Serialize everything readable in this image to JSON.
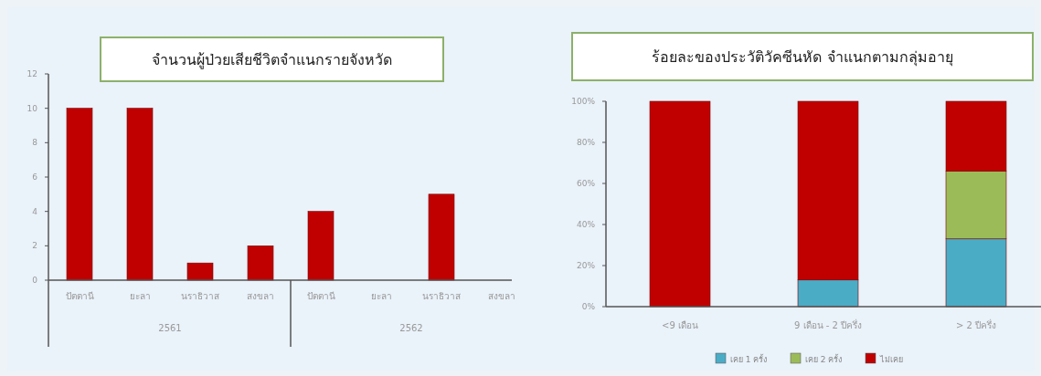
{
  "chart_data": [
    {
      "type": "bar",
      "title": "จำนวนผู้ป่วยเสียชีวิตจำแนกรายจังหวัด",
      "categories": [
        "ปัตตานี",
        "ยะลา",
        "นราธิวาส",
        "สงขลา",
        "ปัตตานี",
        "ยะลา",
        "นราธิวาส",
        "สงขลา"
      ],
      "series": [
        {
          "color": "#c00000",
          "values": [
            10,
            10,
            1,
            2,
            4,
            0,
            5,
            0
          ]
        }
      ],
      "annotations": [
        "2561",
        "2562"
      ],
      "ylim": [
        0,
        12
      ],
      "yticks": [
        0,
        2,
        4,
        6,
        8,
        10,
        12
      ],
      "grid": false,
      "legend": false
    },
    {
      "type": "bar",
      "title": "ร้อยละของประวัติวัคซีนหัด จำแนกตามกลุ่มอายุ",
      "stacked": true,
      "categories": [
        "<9 เดือน",
        "9 เดือน - 2 ปีครึ่ง",
        "> 2 ปีครึ่ง"
      ],
      "series": [
        {
          "name": "เคย 1 ครั้ง",
          "color": "#4bacc6",
          "values": [
            0,
            13,
            33
          ]
        },
        {
          "name": "เคย 2 ครั้ง",
          "color": "#9bbb59",
          "values": [
            0,
            0,
            33
          ]
        },
        {
          "name": "ไม่เคย",
          "color": "#c00000",
          "values": [
            100,
            87,
            34
          ]
        }
      ],
      "ylim": [
        0,
        100
      ],
      "yticks": [
        {
          "value": 0,
          "label": "0%"
        },
        {
          "value": 20,
          "label": "20%"
        },
        {
          "value": 40,
          "label": "40%"
        },
        {
          "value": 60,
          "label": "60%"
        },
        {
          "value": 80,
          "label": "80%"
        },
        {
          "value": 100,
          "label": "100%"
        }
      ],
      "grid": false,
      "legend": "bottom"
    }
  ]
}
